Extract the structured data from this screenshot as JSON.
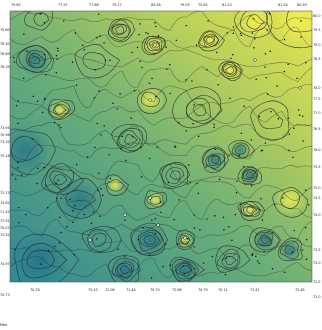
{
  "map": {
    "top_labels": [
      "79.85",
      "77.97",
      "77.68",
      "79.27",
      "80.58",
      "79.05",
      "75.62",
      "81.23",
      "81.24",
      "80.59"
    ],
    "left_labels": [
      "79.80",
      "76.50",
      "76.89",
      "76.29",
      "73.94",
      "70.96",
      "73.32",
      "75.18",
      "72.73",
      "74.82",
      "71.42",
      "72.91",
      "70.07",
      "72.52",
      "74.97",
      "70.73"
    ],
    "right_labels": [
      "80.0",
      "79.5",
      "79.0",
      "78.5",
      "78.0",
      "77.5",
      "77.0",
      "76.5",
      "76.0",
      "75.5",
      "75.0",
      "74.5",
      "74.0",
      "73.5",
      "73.0",
      "72.5",
      "72.0"
    ],
    "bottom_labels": [
      "70.78",
      "75.53",
      "72.06",
      "71.44",
      "70.70",
      "72.66",
      "70.79",
      "70.11",
      "71.41",
      "72.65"
    ],
    "corner_label": "Mea",
    "colors": {
      "low": "#2f8896",
      "mid": "#8dbc69",
      "high": "#e6e54f",
      "contour": "#2a2a2a",
      "station": "#141414"
    }
  }
}
